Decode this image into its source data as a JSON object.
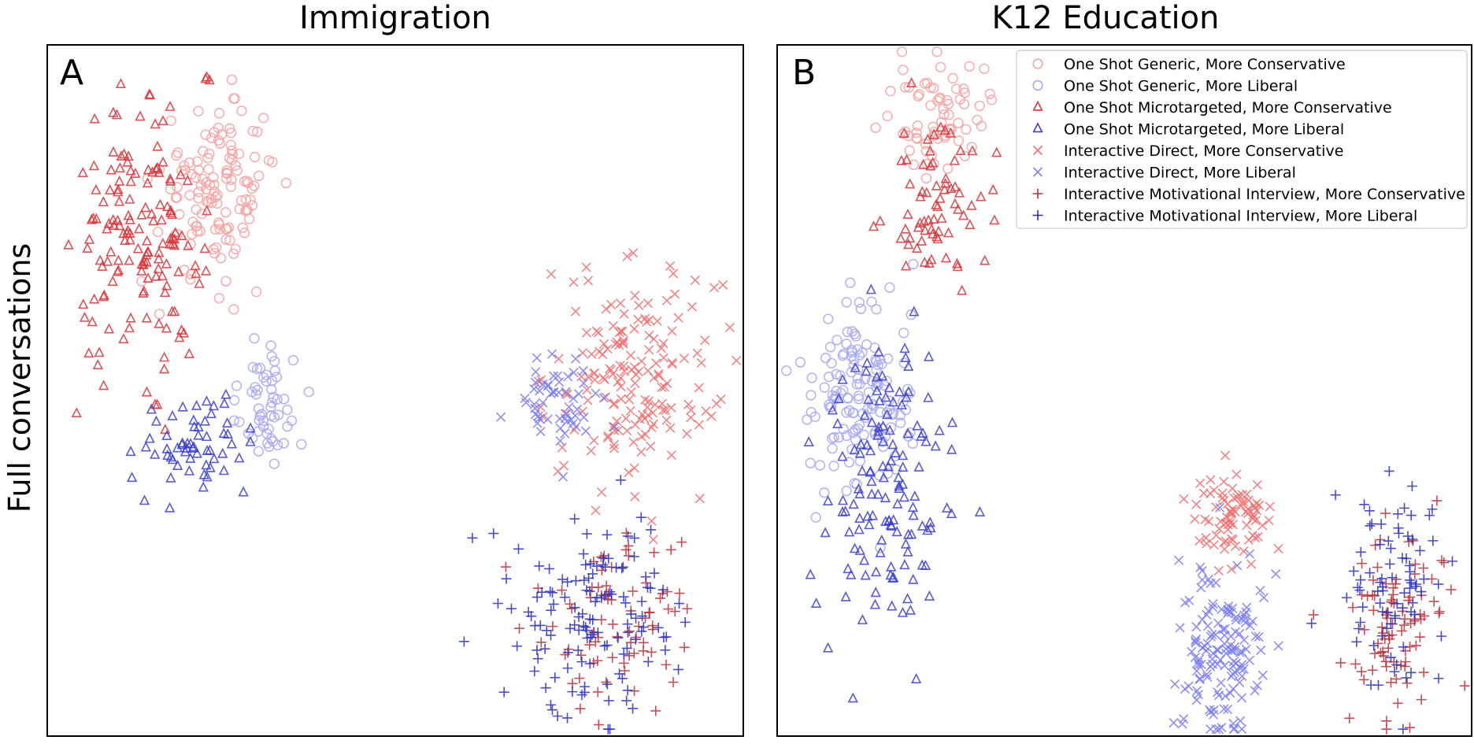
{
  "figure": {
    "ylabel": "Full conversations"
  },
  "legend": {
    "placement": "top-right of panel B",
    "entries": [
      {
        "label": "One Shot Generic, More Conservative",
        "marker": "circle",
        "color": "#f4a5a5"
      },
      {
        "label": "One Shot Generic, More Liberal",
        "marker": "circle",
        "color": "#a9aaee"
      },
      {
        "label": "One Shot Microtargeted, More Conservative",
        "marker": "triangle",
        "color": "#d6353b"
      },
      {
        "label": "One Shot Microtargeted, More Liberal",
        "marker": "triangle",
        "color": "#3a3fcc"
      },
      {
        "label": "Interactive Direct, More Conservative",
        "marker": "x",
        "color": "#f07070"
      },
      {
        "label": "Interactive Direct, More Liberal",
        "marker": "x",
        "color": "#7a7df0"
      },
      {
        "label": "Interactive Motivational Interview, More Conservative",
        "marker": "plus",
        "color": "#b8303a"
      },
      {
        "label": "Interactive Motivational Interview, More Liberal",
        "marker": "plus",
        "color": "#2a2fb8"
      }
    ]
  },
  "chart_data": [
    {
      "type": "scatter",
      "title": "Immigration",
      "panel_label": "A",
      "xlim": [
        0,
        100
      ],
      "ylim": [
        0,
        100
      ],
      "axis_ticks": "none",
      "grid": false,
      "clusters": [
        {
          "series": 0,
          "cx": 24.5,
          "cy": 79,
          "sx": 4.2,
          "sy": 6.5,
          "n": 130
        },
        {
          "series": 2,
          "cx": 13,
          "cy": 71,
          "sx": 4.5,
          "sy": 8.5,
          "n": 150
        },
        {
          "series": 2,
          "cx": 23,
          "cy": 95,
          "sx": 0.3,
          "sy": 0.3,
          "n": 3
        },
        {
          "series": 1,
          "cx": 32,
          "cy": 48.5,
          "sx": 3.0,
          "sy": 4.5,
          "n": 55
        },
        {
          "series": 3,
          "cx": 21,
          "cy": 42,
          "sx": 3.8,
          "sy": 3.5,
          "n": 60
        },
        {
          "series": 4,
          "cx": 84,
          "cy": 52,
          "sx": 6.0,
          "sy": 8.0,
          "n": 170
        },
        {
          "series": 5,
          "cx": 74,
          "cy": 48,
          "sx": 3.5,
          "sy": 3.5,
          "n": 55
        },
        {
          "series": 6,
          "cx": 82,
          "cy": 18,
          "sx": 5.5,
          "sy": 7.0,
          "n": 80
        },
        {
          "series": 7,
          "cx": 79,
          "cy": 17,
          "sx": 6.0,
          "sy": 7.5,
          "n": 130
        }
      ]
    },
    {
      "type": "scatter",
      "title": "K12 Education",
      "panel_label": "B",
      "xlim": [
        0,
        100
      ],
      "ylim": [
        0,
        100
      ],
      "axis_ticks": "none",
      "grid": false,
      "clusters": [
        {
          "series": 0,
          "cx": 23.5,
          "cy": 90,
          "sx": 3.2,
          "sy": 4.0,
          "n": 70
        },
        {
          "series": 2,
          "cx": 23,
          "cy": 77,
          "sx": 3.5,
          "sy": 5.5,
          "n": 70
        },
        {
          "series": 1,
          "cx": 11.5,
          "cy": 50,
          "sx": 4.0,
          "sy": 7.5,
          "n": 140
        },
        {
          "series": 3,
          "cx": 16,
          "cy": 36,
          "sx": 4.2,
          "sy": 11,
          "n": 140
        },
        {
          "series": 4,
          "cx": 66,
          "cy": 32,
          "sx": 3.0,
          "sy": 3.5,
          "n": 80
        },
        {
          "series": 5,
          "cx": 64,
          "cy": 12,
          "sx": 3.0,
          "sy": 6.5,
          "n": 140
        },
        {
          "series": 6,
          "cx": 89,
          "cy": 17,
          "sx": 3.5,
          "sy": 7.0,
          "n": 90
        },
        {
          "series": 7,
          "cx": 89,
          "cy": 21,
          "sx": 3.5,
          "sy": 7.5,
          "n": 80
        }
      ]
    }
  ]
}
